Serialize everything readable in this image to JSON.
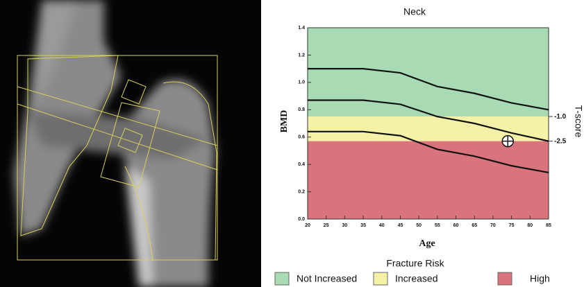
{
  "chart_data": {
    "type": "line",
    "title": "Neck",
    "x_label": "Age",
    "y_label": "BMD",
    "y2_label": "T-score",
    "x": [
      20,
      35,
      45,
      55,
      65,
      75,
      85
    ],
    "series": [
      {
        "color": "#111111",
        "values": [
          1.1,
          1.1,
          1.07,
          0.97,
          0.92,
          0.85,
          0.8
        ]
      },
      {
        "color": "#111111",
        "values": [
          0.87,
          0.87,
          0.84,
          0.75,
          0.7,
          0.63,
          0.57
        ]
      },
      {
        "color": "#111111",
        "values": [
          0.64,
          0.64,
          0.61,
          0.51,
          0.46,
          0.39,
          0.34
        ]
      }
    ],
    "point": {
      "x": 74,
      "y": 0.57
    },
    "xlim": [
      20,
      85
    ],
    "xticks": [
      20,
      25,
      30,
      35,
      40,
      45,
      50,
      55,
      60,
      65,
      70,
      75,
      80,
      85
    ],
    "ylim": [
      0,
      1.4
    ],
    "yticks": [
      {
        "value": 0,
        "label": "0.0"
      },
      0.2,
      0.4,
      0.6,
      0.8,
      {
        "value": 1,
        "label": "1.0"
      },
      1.2,
      1.4
    ],
    "y2lim": [
      -7.25,
      4.4167
    ],
    "y2ticks": [
      {
        "value": -1,
        "label": "-1.0"
      },
      -2.5
    ],
    "legend_title": "Fracture Risk",
    "bands": [
      {
        "name": "Not Increased",
        "color": "#a8dbb3",
        "range": [
          0.75,
          1.4
        ]
      },
      {
        "name": "Increased",
        "color": "#f5f2a8",
        "range": [
          0.57,
          0.75
        ]
      },
      {
        "name": "High",
        "color": "#d9737c",
        "range": [
          0,
          0.57
        ]
      }
    ]
  }
}
